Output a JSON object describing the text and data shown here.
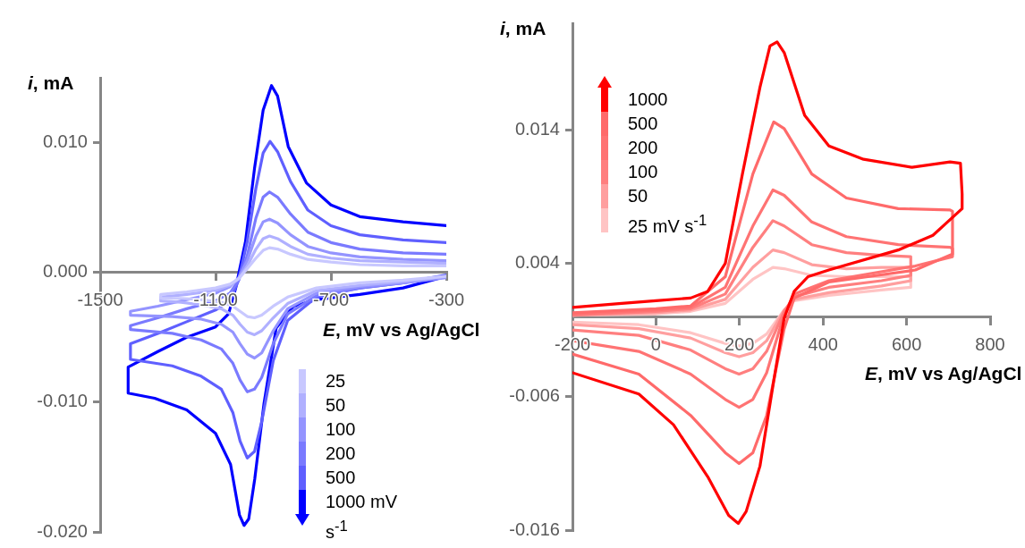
{
  "chart_data": [
    {
      "type": "line",
      "xlabel": "E, mV vs Ag/AgCl",
      "ylabel": "i, mA",
      "marker": "none",
      "legend": "bottom right",
      "xlim": [
        -1500,
        -300
      ],
      "xticks": [
        -1500,
        -1100,
        -700,
        -300
      ],
      "ylim": [
        -0.02,
        0.015
      ],
      "yticks": [
        {
          "value": -0.02,
          "label": "-0.020"
        },
        {
          "value": -0.01,
          "label": "-0.010"
        },
        {
          "value": 0,
          "label": "0.000"
        },
        {
          "value": 0.01,
          "label": "0.010"
        }
      ],
      "series": [
        {
          "name": "25",
          "color": "#c8c8ff",
          "x": [
            -300,
            -450,
            -600,
            -750,
            -850,
            -900,
            -940,
            -965,
            -990,
            -1015,
            -1040,
            -1080,
            -1150,
            -1220,
            -1290,
            -1290,
            -1200,
            -1100,
            -1050,
            -1020,
            -990,
            -960,
            -935,
            -913,
            -885,
            -840,
            -780,
            -700,
            -600,
            -450,
            -300
          ],
          "values": [
            -0.0003,
            -0.0006,
            -0.0008,
            -0.0012,
            -0.0019,
            -0.0026,
            -0.0033,
            -0.0035,
            -0.0034,
            -0.003,
            -0.0026,
            -0.0023,
            -0.0021,
            -0.002,
            -0.002,
            -0.0017,
            -0.0015,
            -0.0012,
            -0.0009,
            -0.0005,
            0.0003,
            0.0011,
            0.0017,
            0.0019,
            0.0018,
            0.0014,
            0.001,
            0.0008,
            0.0006,
            0.0005,
            0.0005
          ]
        },
        {
          "name": "50",
          "color": "#b0b0ff",
          "x": [
            -300,
            -450,
            -600,
            -750,
            -850,
            -900,
            -940,
            -965,
            -990,
            -1015,
            -1040,
            -1080,
            -1150,
            -1220,
            -1290,
            -1290,
            -1200,
            -1100,
            -1050,
            -1020,
            -990,
            -960,
            -935,
            -913,
            -885,
            -840,
            -780,
            -700,
            -600,
            -450,
            -300
          ],
          "values": [
            -0.0003,
            -0.0007,
            -0.001,
            -0.0014,
            -0.0024,
            -0.0035,
            -0.0045,
            -0.0048,
            -0.0046,
            -0.004,
            -0.0033,
            -0.0028,
            -0.0025,
            -0.0023,
            -0.0022,
            -0.0019,
            -0.0017,
            -0.0014,
            -0.001,
            -0.0005,
            0.0005,
            0.0018,
            0.0026,
            0.0028,
            0.0026,
            0.002,
            0.0014,
            0.0011,
            0.0009,
            0.0008,
            0.0007
          ]
        },
        {
          "name": "100",
          "color": "#9494ff",
          "x": [
            -300,
            -450,
            -600,
            -750,
            -850,
            -900,
            -940,
            -965,
            -990,
            -1015,
            -1040,
            -1080,
            -1150,
            -1250,
            -1395,
            -1395,
            -1300,
            -1200,
            -1100,
            -1050,
            -1020,
            -990,
            -960,
            -935,
            -913,
            -885,
            -840,
            -780,
            -700,
            -600,
            -450,
            -300
          ],
          "values": [
            -0.0004,
            -0.0008,
            -0.0011,
            -0.0016,
            -0.0028,
            -0.0045,
            -0.0062,
            -0.0066,
            -0.0063,
            -0.0055,
            -0.0046,
            -0.004,
            -0.0036,
            -0.0034,
            -0.0033,
            -0.003,
            -0.0026,
            -0.0021,
            -0.0016,
            -0.0011,
            -0.0004,
            0.0009,
            0.0028,
            0.0039,
            0.0041,
            0.0038,
            0.0029,
            0.002,
            0.0015,
            0.0012,
            0.001,
            0.0009
          ]
        },
        {
          "name": "200",
          "color": "#7a7aff",
          "x": [
            -300,
            -450,
            -600,
            -750,
            -850,
            -900,
            -940,
            -965,
            -990,
            -1015,
            -1040,
            -1080,
            -1150,
            -1250,
            -1395,
            -1395,
            -1300,
            -1200,
            -1100,
            -1050,
            -1020,
            -990,
            -960,
            -935,
            -913,
            -885,
            -840,
            -780,
            -700,
            -600,
            -450,
            -300
          ],
          "values": [
            -0.0003,
            -0.0008,
            -0.0012,
            -0.0018,
            -0.0032,
            -0.0055,
            -0.0081,
            -0.009,
            -0.0092,
            -0.0083,
            -0.007,
            -0.0059,
            -0.0052,
            -0.0047,
            -0.0044,
            -0.0041,
            -0.0035,
            -0.0028,
            -0.0022,
            -0.0016,
            -0.0006,
            0.0013,
            0.0042,
            0.0058,
            0.0062,
            0.0058,
            0.0045,
            0.0031,
            0.0023,
            0.0018,
            0.0015,
            0.0014
          ]
        },
        {
          "name": "500",
          "color": "#5f5fff",
          "x": [
            -300,
            -450,
            -600,
            -750,
            -850,
            -900,
            -940,
            -965,
            -990,
            -1015,
            -1040,
            -1080,
            -1150,
            -1250,
            -1395,
            -1395,
            -1300,
            -1200,
            -1100,
            -1050,
            -1020,
            -990,
            -960,
            -935,
            -911,
            -885,
            -840,
            -780,
            -700,
            -600,
            -450,
            -300
          ],
          "values": [
            -0.0002,
            -0.0008,
            -0.0012,
            -0.0019,
            -0.0037,
            -0.0068,
            -0.0115,
            -0.0138,
            -0.0143,
            -0.013,
            -0.0108,
            -0.009,
            -0.008,
            -0.0072,
            -0.0067,
            -0.0055,
            -0.0047,
            -0.0038,
            -0.0029,
            -0.0022,
            -0.0006,
            0.0024,
            0.0065,
            0.0092,
            0.0101,
            0.0093,
            0.007,
            0.0048,
            0.0036,
            0.0029,
            0.0025,
            0.0023
          ]
        },
        {
          "name": "1000 mV s$^{-1}$",
          "color": "#0000ff",
          "x": [
            -300,
            -450,
            -600,
            -750,
            -830,
            -890,
            -932,
            -964,
            -985,
            -1001,
            -1017,
            -1048,
            -1100,
            -1200,
            -1311,
            -1403,
            -1403,
            -1300,
            -1200,
            -1100,
            -1055,
            -1030,
            -996,
            -965,
            -935,
            -906,
            -885,
            -848,
            -785,
            -700,
            -600,
            -450,
            -300
          ],
          "values": [
            -0.0003,
            -0.0012,
            -0.0017,
            -0.0021,
            -0.0026,
            -0.0043,
            -0.0101,
            -0.0159,
            -0.019,
            -0.0195,
            -0.0187,
            -0.0148,
            -0.0124,
            -0.0106,
            -0.0097,
            -0.0093,
            -0.0073,
            -0.0061,
            -0.005,
            -0.0042,
            -0.0032,
            -0.0012,
            0.0024,
            0.008,
            0.0125,
            0.0144,
            0.0136,
            0.0097,
            0.0069,
            0.0052,
            0.0043,
            0.0039,
            0.0036
          ]
        }
      ]
    },
    {
      "type": "line",
      "xlabel": "E, mV vs Ag/AgCl",
      "ylabel": "i, mA",
      "marker": "none",
      "legend": "top left",
      "xlim": [
        -200,
        800
      ],
      "xticks": [
        -200,
        0,
        200,
        400,
        600,
        800
      ],
      "ylim": [
        -0.016,
        0.022
      ],
      "yticks": [
        -0.016,
        -0.006,
        0.004,
        0.014
      ],
      "series": [
        {
          "name": "1000",
          "color": "#ff0000",
          "x": [
            -200,
            -82,
            0,
            83,
            124,
            166,
            207,
            249,
            273,
            290,
            307,
            356,
            414,
            497,
            613,
            704,
            729,
            733,
            733,
            663,
            580,
            414,
            364,
            331,
            307,
            282,
            249,
            216,
            197,
            174,
            124,
            42,
            -41,
            -200
          ],
          "values": [
            0.0007,
            0.001,
            0.0012,
            0.0014,
            0.0019,
            0.004,
            0.0107,
            0.0172,
            0.0203,
            0.0206,
            0.0198,
            0.0151,
            0.0128,
            0.0118,
            0.0112,
            0.0116,
            0.0115,
            0.0092,
            0.0081,
            0.0061,
            0.005,
            0.0035,
            0.003,
            0.0019,
            -0.0001,
            -0.0048,
            -0.0112,
            -0.0146,
            -0.0155,
            -0.0149,
            -0.012,
            -0.0081,
            -0.0058,
            -0.0042
          ]
        },
        {
          "name": "500",
          "color": "#ff6a6a",
          "x": [
            -200,
            0,
            83,
            166,
            232,
            282,
            307,
            373,
            456,
            580,
            704,
            710,
            710,
            621,
            414,
            331,
            307,
            265,
            232,
            199,
            166,
            83,
            -41,
            -200
          ],
          "values": [
            0.0003,
            0.0006,
            0.0008,
            0.003,
            0.0107,
            0.0146,
            0.0141,
            0.0107,
            0.0089,
            0.0081,
            0.008,
            0.0079,
            0.0047,
            0.0035,
            0.0026,
            0.0014,
            -0.0009,
            -0.0074,
            -0.0102,
            -0.011,
            -0.0102,
            -0.0074,
            -0.0043,
            -0.0028
          ]
        },
        {
          "name": "200",
          "color": "#ff7373",
          "x": [
            -200,
            0,
            83,
            166,
            232,
            280,
            307,
            373,
            456,
            580,
            704,
            710,
            710,
            621,
            414,
            331,
            307,
            265,
            232,
            199,
            166,
            83,
            -41,
            -200
          ],
          "values": [
            0.0002,
            0.0005,
            0.0007,
            0.0022,
            0.0068,
            0.0095,
            0.0091,
            0.0071,
            0.006,
            0.0054,
            0.0052,
            0.0051,
            0.0045,
            0.0038,
            0.0027,
            0.0017,
            0.0002,
            -0.0042,
            -0.0062,
            -0.0068,
            -0.0062,
            -0.0043,
            -0.0026,
            -0.0018
          ]
        },
        {
          "name": "100",
          "color": "#ff7f7f",
          "x": [
            -200,
            0,
            83,
            166,
            232,
            280,
            307,
            373,
            456,
            540,
            610,
            610,
            540,
            414,
            331,
            307,
            265,
            232,
            199,
            166,
            83,
            -41,
            -200
          ],
          "values": [
            0.0001,
            0.0004,
            0.0006,
            0.0017,
            0.0052,
            0.0072,
            0.0068,
            0.0054,
            0.0048,
            0.0046,
            0.0045,
            0.0031,
            0.0027,
            0.0022,
            0.0015,
            0.0004,
            -0.0026,
            -0.0039,
            -0.0043,
            -0.0039,
            -0.0025,
            -0.0014,
            -0.001
          ]
        },
        {
          "name": "50",
          "color": "#ff9f9f",
          "x": [
            -200,
            0,
            83,
            166,
            232,
            280,
            307,
            373,
            456,
            540,
            610,
            610,
            540,
            414,
            331,
            307,
            265,
            232,
            199,
            166,
            83,
            -41,
            -200
          ],
          "values": [
            0.0001,
            0.0003,
            0.0005,
            0.0013,
            0.0037,
            0.005,
            0.0048,
            0.0039,
            0.0036,
            0.0037,
            0.0037,
            0.0027,
            0.0023,
            0.0018,
            0.0013,
            0.0005,
            -0.0018,
            -0.0027,
            -0.003,
            -0.0027,
            -0.0016,
            -0.0009,
            -0.0006
          ]
        },
        {
          "name": "25 mV s$^{-1}$",
          "color": "#ffc4c4",
          "x": [
            -200,
            0,
            83,
            166,
            232,
            280,
            307,
            373,
            456,
            540,
            610,
            610,
            540,
            414,
            331,
            307,
            265,
            232,
            199,
            166,
            83,
            -41,
            -200
          ],
          "values": [
            0.0001,
            0.0002,
            0.0004,
            0.001,
            0.0028,
            0.0037,
            0.0036,
            0.0031,
            0.003,
            0.003,
            0.003,
            0.0022,
            0.002,
            0.0016,
            0.0012,
            0.0005,
            -0.0013,
            -0.002,
            -0.0022,
            -0.002,
            -0.0012,
            -0.0006,
            -0.0004
          ]
        }
      ]
    }
  ]
}
